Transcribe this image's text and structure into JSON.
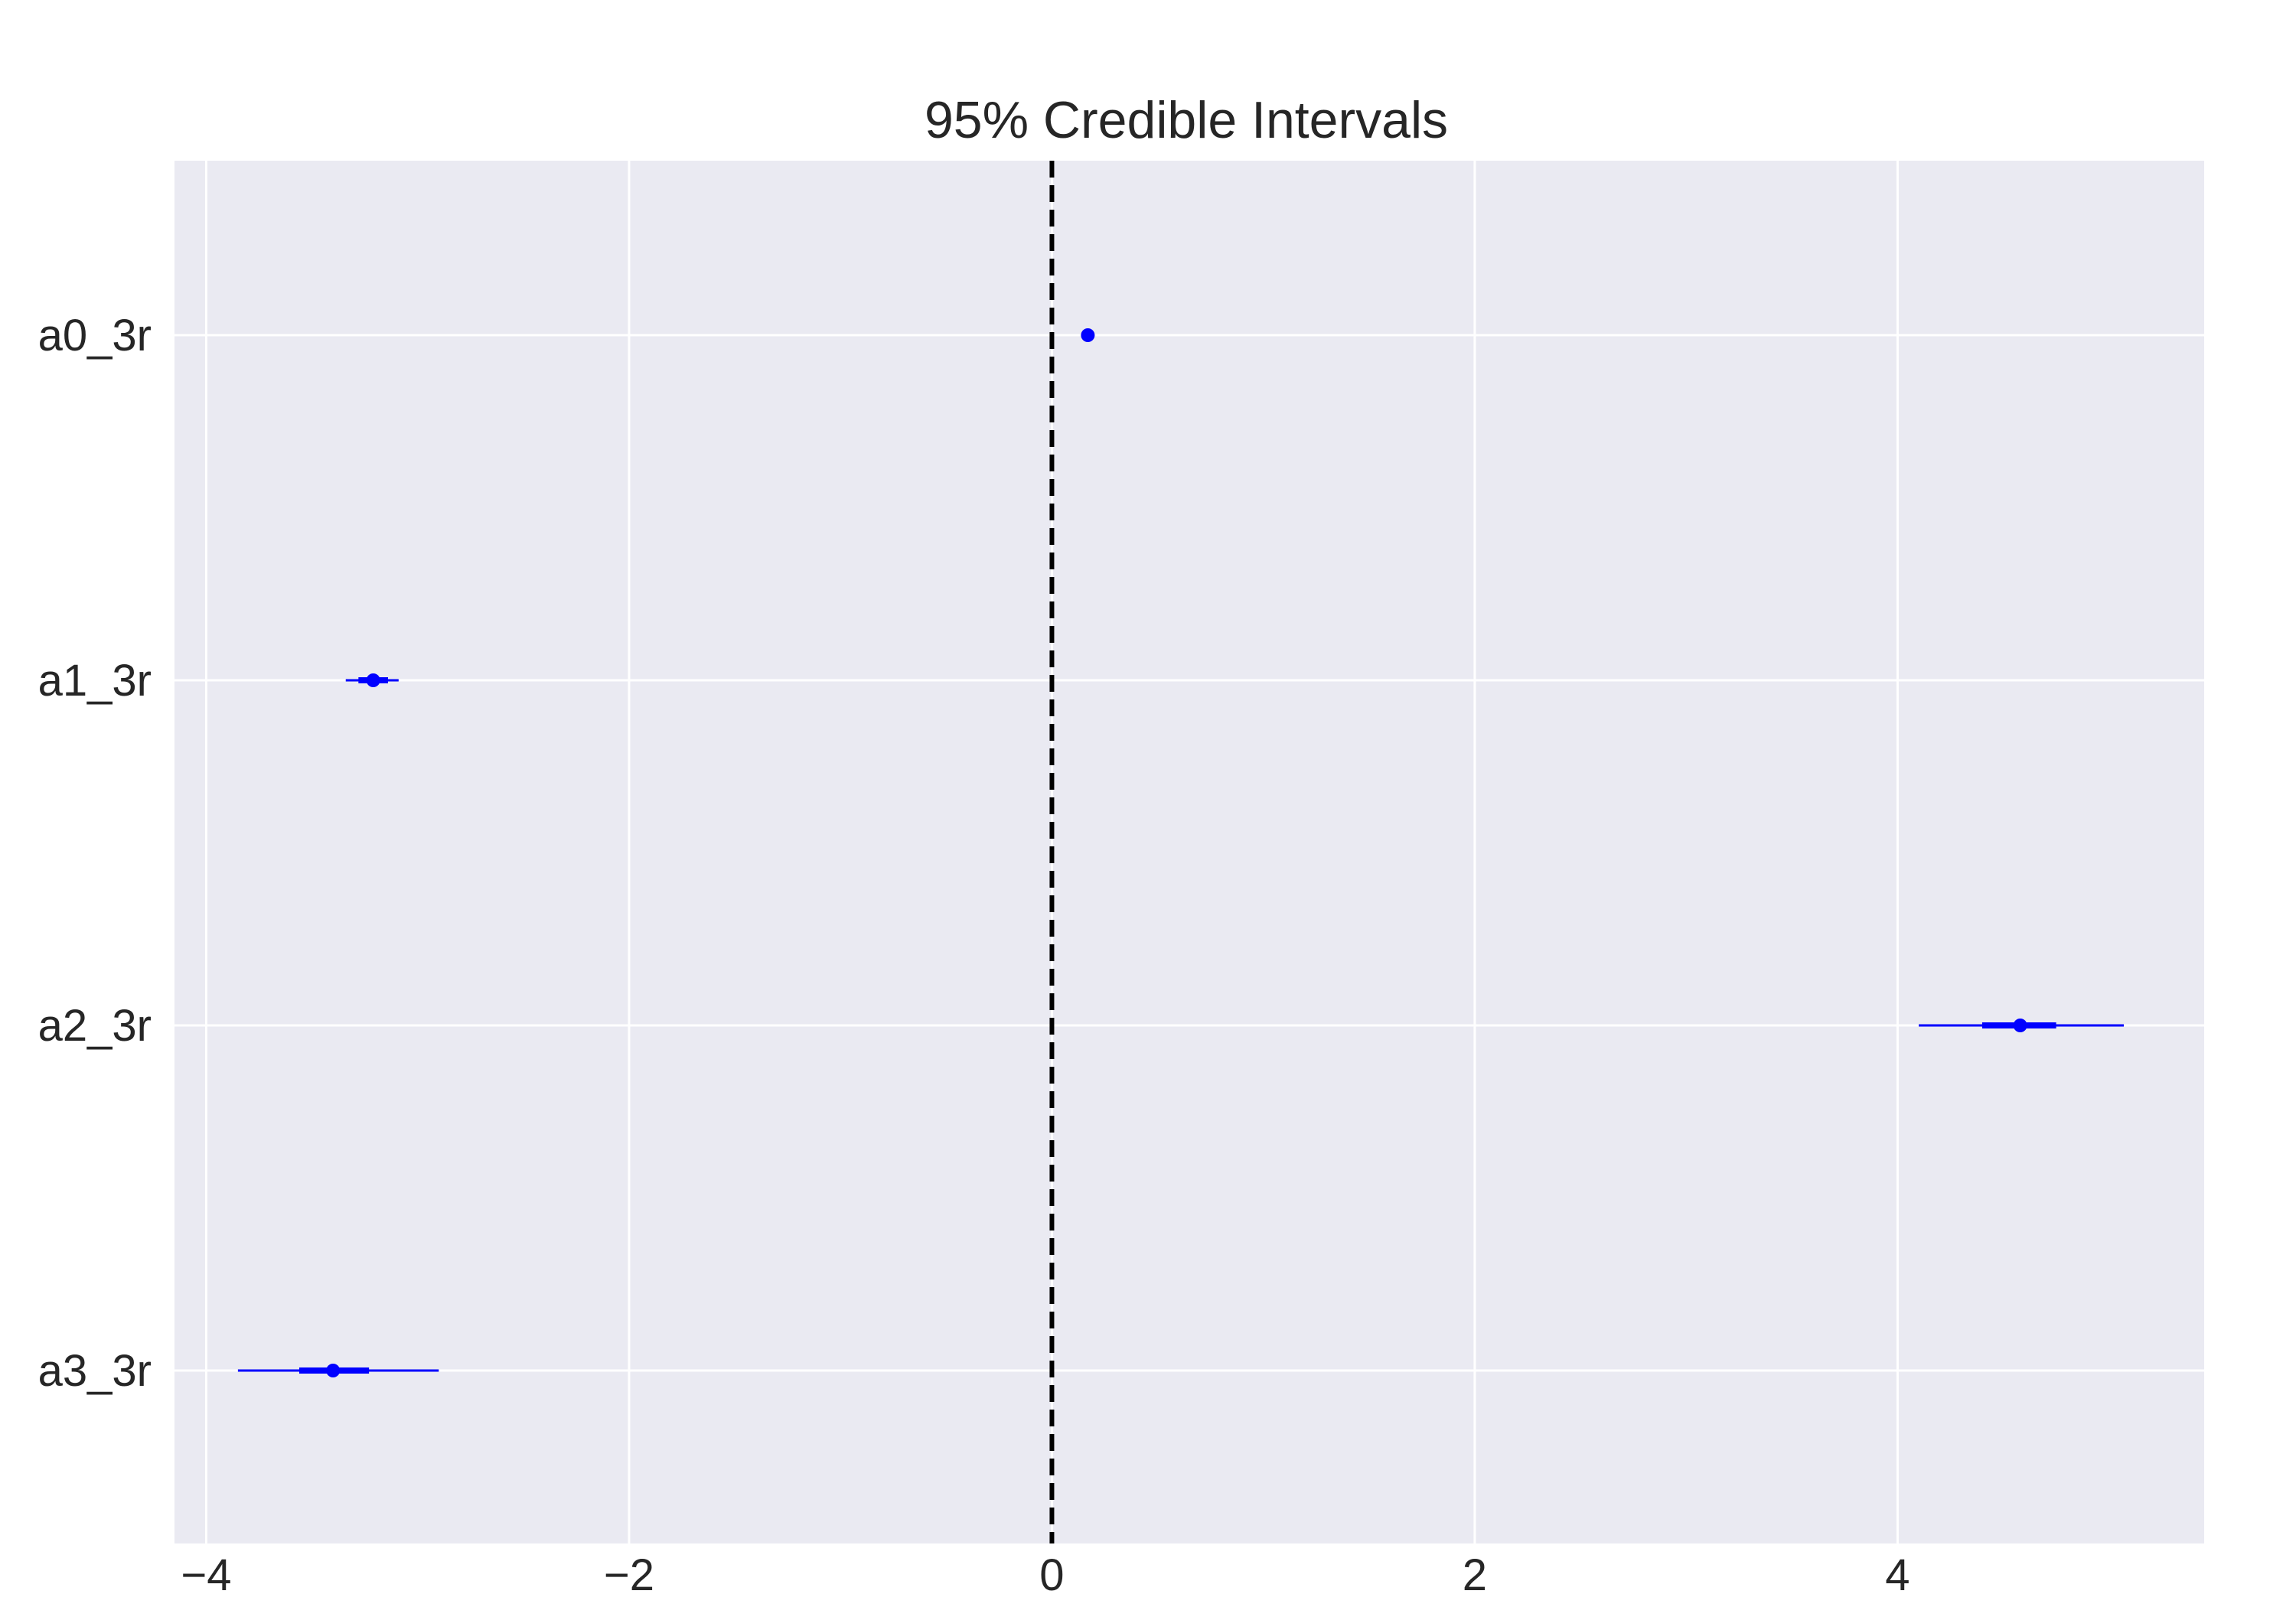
{
  "chart_data": {
    "type": "forest",
    "title": "95% Credible Intervals",
    "xlabel": "",
    "ylabel": "",
    "xlim": [
      -4.15,
      5.45
    ],
    "x_ticks": [
      -4,
      -2,
      0,
      2,
      4
    ],
    "x_tick_labels": [
      "−4",
      "−2",
      "0",
      "2",
      "4"
    ],
    "reference_line": 0,
    "grid": true,
    "colors": {
      "background": "#eaeaf2",
      "grid": "#ffffff",
      "interval": "#0000ff",
      "reference_line": "#000000",
      "text": "#262626"
    },
    "parameters": [
      {
        "label": "a0_3r",
        "mean": 0.17,
        "hdi_inner": [
          0.15,
          0.19
        ],
        "hdi_95": [
          0.15,
          0.19
        ]
      },
      {
        "label": "a1_3r",
        "mean": -3.21,
        "hdi_inner": [
          -3.28,
          -3.14
        ],
        "hdi_95": [
          -3.34,
          -3.09
        ]
      },
      {
        "label": "a2_3r",
        "mean": 4.58,
        "hdi_inner": [
          4.4,
          4.75
        ],
        "hdi_95": [
          4.1,
          5.07
        ]
      },
      {
        "label": "a3_3r",
        "mean": -3.4,
        "hdi_inner": [
          -3.56,
          -3.23
        ],
        "hdi_95": [
          -3.85,
          -2.9
        ]
      }
    ]
  }
}
